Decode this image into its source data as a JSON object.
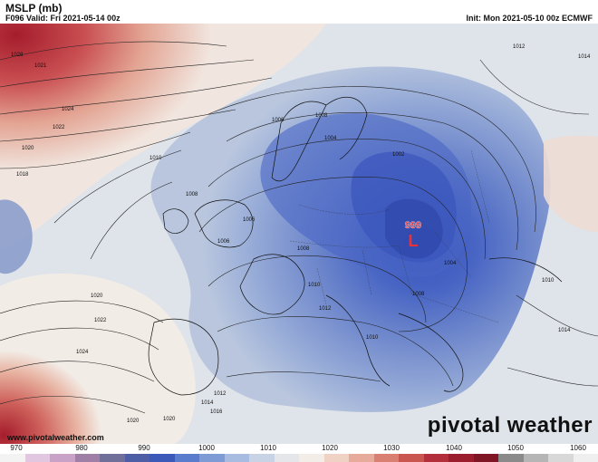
{
  "header": {
    "title": "MSLP (mb)",
    "valid": "F096 Valid: Fri 2021-05-14 00z",
    "init": "Init: Mon 2021-05-10 00z ECMWF"
  },
  "map": {
    "low_center": {
      "label": "L",
      "value": "999"
    },
    "isobar_labels": [
      "1028",
      "1021",
      "1024",
      "1022",
      "1020",
      "1018",
      "1010",
      "1008",
      "1006",
      "1006",
      "1006",
      "1004",
      "1002",
      "1004",
      "1008",
      "1008",
      "1010",
      "1008",
      "1010",
      "1010",
      "1012",
      "1014",
      "1020",
      "1022",
      "1024",
      "1020",
      "1012",
      "1014",
      "1016",
      "1020",
      "1012",
      "1014"
    ]
  },
  "footer": {
    "credit": "www.pivotalweather.com",
    "brand": "pivotal weather"
  },
  "colorbar": {
    "ticks": [
      "970",
      "980",
      "990",
      "1000",
      "1010",
      "1020",
      "1030",
      "1040",
      "1050",
      "1060"
    ],
    "colors": [
      "#f3f3f3",
      "#e2c7e0",
      "#c9a3c7",
      "#9f7fa6",
      "#6f6f9a",
      "#4e5ea6",
      "#3b59b8",
      "#5a7ccc",
      "#7f9bd6",
      "#a8bbe0",
      "#c9d3e6",
      "#e4e6ea",
      "#f2ede6",
      "#f0d2c4",
      "#e7ab9b",
      "#d98073",
      "#c9564f",
      "#b3303a",
      "#9a1e2e",
      "#7f1626",
      "#8a8a8a",
      "#b5b5b5",
      "#d8d8d8",
      "#efefef"
    ]
  }
}
